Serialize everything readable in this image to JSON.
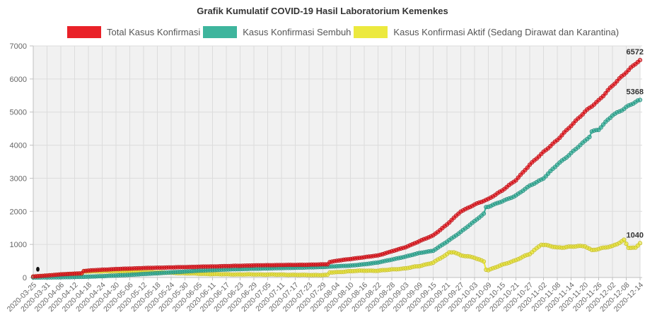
{
  "header": {
    "title": "Grafik Kumulatif COVID-19 Hasil Laboratorium Kemenkes"
  },
  "legend": {
    "items": [
      {
        "label": "Total Kasus Konfirmasi",
        "color": "#e92128"
      },
      {
        "label": "Kasus Konfirmasi Sembuh",
        "color": "#3eb59d"
      },
      {
        "label": "Kasus Konfirmasi Aktif (Sedang Dirawat dan Karantina)",
        "color": "#ece93e"
      }
    ]
  },
  "chart_data": {
    "type": "line",
    "title": "Grafik Kumulatif COVID-19 Hasil Laboratorium Kemenkes",
    "x_start_date": "2020-03-25",
    "x_end_date": "2020-12-14",
    "x_label_interval_days": 6,
    "x_total_days": 264,
    "x_labels": [
      "2020-03-25",
      "2020-03-31",
      "2020-04-06",
      "2020-04-12",
      "2020-04-18",
      "2020-04-24",
      "2020-04-30",
      "2020-05-06",
      "2020-05-12",
      "2020-05-18",
      "2020-05-24",
      "2020-05-30",
      "2020-06-05",
      "2020-06-11",
      "2020-06-17",
      "2020-06-23",
      "2020-06-29",
      "2020-07-05",
      "2020-07-11",
      "2020-07-17",
      "2020-07-23",
      "2020-07-29",
      "2020-08-04",
      "2020-08-10",
      "2020-08-16",
      "2020-08-22",
      "2020-08-28",
      "2020-09-03",
      "2020-09-09",
      "2020-09-15",
      "2020-09-21",
      "2020-09-27",
      "2020-10-03",
      "2020-10-09",
      "2020-10-15",
      "2020-10-21",
      "2020-10-27",
      "2020-11-02",
      "2020-11-08",
      "2020-11-14",
      "2020-11-20",
      "2020-11-26",
      "2020-12-02",
      "2020-12-08",
      "2020-12-14"
    ],
    "ylim": [
      0,
      7000
    ],
    "yticks": [
      0,
      1000,
      2000,
      3000,
      4000,
      5000,
      6000,
      7000
    ],
    "grid": true,
    "legend_position": "top",
    "marker": "circle",
    "series": [
      {
        "name": "Total Kasus Konfirmasi",
        "color": "#e92128",
        "stroke_dark": "#c0151c",
        "end_label": "6572",
        "final_value": 6572,
        "anchors_day_value": [
          [
            0,
            30
          ],
          [
            6,
            60
          ],
          [
            12,
            95
          ],
          [
            18,
            118
          ],
          [
            21,
            126
          ],
          [
            22,
            195
          ],
          [
            24,
            210
          ],
          [
            30,
            235
          ],
          [
            36,
            255
          ],
          [
            42,
            270
          ],
          [
            48,
            285
          ],
          [
            54,
            295
          ],
          [
            60,
            305
          ],
          [
            66,
            315
          ],
          [
            72,
            325
          ],
          [
            78,
            335
          ],
          [
            84,
            345
          ],
          [
            90,
            355
          ],
          [
            96,
            365
          ],
          [
            102,
            372
          ],
          [
            108,
            378
          ],
          [
            114,
            382
          ],
          [
            120,
            385
          ],
          [
            126,
            398
          ],
          [
            128,
            402
          ],
          [
            129,
            468
          ],
          [
            132,
            505
          ],
          [
            138,
            560
          ],
          [
            144,
            612
          ],
          [
            150,
            668
          ],
          [
            156,
            790
          ],
          [
            162,
            918
          ],
          [
            168,
            1095
          ],
          [
            174,
            1275
          ],
          [
            180,
            1600
          ],
          [
            186,
            2000
          ],
          [
            192,
            2200
          ],
          [
            198,
            2375
          ],
          [
            204,
            2625
          ],
          [
            210,
            2950
          ],
          [
            216,
            3400
          ],
          [
            222,
            3800
          ],
          [
            228,
            4150
          ],
          [
            234,
            4600
          ],
          [
            240,
            5000
          ],
          [
            246,
            5360
          ],
          [
            252,
            5790
          ],
          [
            258,
            6220
          ],
          [
            264,
            6572
          ]
        ]
      },
      {
        "name": "Kasus Konfirmasi Sembuh",
        "color": "#3eb59d",
        "stroke_dark": "#2a9484",
        "end_label": "5368",
        "final_value": 5368,
        "anchors_day_value": [
          [
            0,
            0
          ],
          [
            6,
            2
          ],
          [
            12,
            6
          ],
          [
            18,
            15
          ],
          [
            24,
            25
          ],
          [
            30,
            40
          ],
          [
            36,
            60
          ],
          [
            42,
            80
          ],
          [
            48,
            105
          ],
          [
            54,
            130
          ],
          [
            60,
            155
          ],
          [
            66,
            180
          ],
          [
            72,
            205
          ],
          [
            78,
            225
          ],
          [
            84,
            242
          ],
          [
            90,
            255
          ],
          [
            96,
            265
          ],
          [
            102,
            275
          ],
          [
            108,
            285
          ],
          [
            114,
            295
          ],
          [
            120,
            305
          ],
          [
            126,
            318
          ],
          [
            132,
            340
          ],
          [
            138,
            360
          ],
          [
            144,
            398
          ],
          [
            150,
            455
          ],
          [
            156,
            540
          ],
          [
            162,
            633
          ],
          [
            168,
            740
          ],
          [
            174,
            810
          ],
          [
            180,
            1080
          ],
          [
            186,
            1380
          ],
          [
            192,
            1700
          ],
          [
            196,
            1930
          ],
          [
            197,
            2130
          ],
          [
            198,
            2140
          ],
          [
            204,
            2300
          ],
          [
            210,
            2480
          ],
          [
            216,
            2770
          ],
          [
            222,
            3000
          ],
          [
            228,
            3410
          ],
          [
            234,
            3760
          ],
          [
            240,
            4120
          ],
          [
            242,
            4260
          ],
          [
            243,
            4420
          ],
          [
            246,
            4475
          ],
          [
            252,
            4900
          ],
          [
            258,
            5150
          ],
          [
            264,
            5368
          ]
        ]
      },
      {
        "name": "Kasus Konfirmasi Aktif (Sedang Dirawat dan Karantina)",
        "color": "#ece93e",
        "stroke_dark": "#cdc52e",
        "end_label": "1040",
        "final_value": 1040,
        "anchors_day_value": [
          [
            0,
            28
          ],
          [
            6,
            55
          ],
          [
            12,
            85
          ],
          [
            18,
            100
          ],
          [
            21,
            104
          ],
          [
            22,
            172
          ],
          [
            24,
            180
          ],
          [
            30,
            188
          ],
          [
            36,
            188
          ],
          [
            42,
            182
          ],
          [
            48,
            172
          ],
          [
            54,
            158
          ],
          [
            60,
            142
          ],
          [
            66,
            128
          ],
          [
            72,
            113
          ],
          [
            78,
            103
          ],
          [
            84,
            96
          ],
          [
            90,
            93
          ],
          [
            96,
            92
          ],
          [
            102,
            90
          ],
          [
            108,
            86
          ],
          [
            114,
            80
          ],
          [
            120,
            74
          ],
          [
            126,
            76
          ],
          [
            128,
            78
          ],
          [
            129,
            150
          ],
          [
            132,
            160
          ],
          [
            138,
            192
          ],
          [
            144,
            206
          ],
          [
            150,
            205
          ],
          [
            156,
            242
          ],
          [
            162,
            277
          ],
          [
            168,
            347
          ],
          [
            174,
            450
          ],
          [
            180,
            700
          ],
          [
            181,
            760
          ],
          [
            183,
            775
          ],
          [
            186,
            670
          ],
          [
            192,
            600
          ],
          [
            196,
            490
          ],
          [
            197,
            240
          ],
          [
            198,
            220
          ],
          [
            204,
            385
          ],
          [
            210,
            525
          ],
          [
            216,
            715
          ],
          [
            221,
            1000
          ],
          [
            222,
            985
          ],
          [
            228,
            905
          ],
          [
            234,
            930
          ],
          [
            240,
            950
          ],
          [
            243,
            830
          ],
          [
            246,
            860
          ],
          [
            252,
            950
          ],
          [
            257,
            1130
          ],
          [
            259,
            900
          ],
          [
            262,
            890
          ],
          [
            264,
            1040
          ]
        ]
      }
    ],
    "annotations": [
      {
        "type": "dot",
        "color": "#111111",
        "day": 2,
        "value": 250
      }
    ],
    "colors": {
      "plot_bg": "#f1f1f1",
      "grid": "#dcdcdc",
      "axis": "#c0c0c0",
      "tick_text": "#666666",
      "end_label_text": "#333333"
    }
  }
}
